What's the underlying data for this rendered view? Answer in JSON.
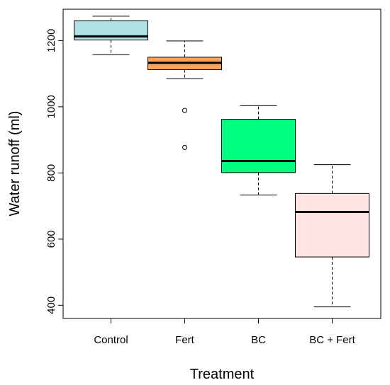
{
  "chart_data": {
    "type": "boxplot",
    "title": "",
    "xlabel": "Treatment",
    "ylabel": "Water runoff (ml)",
    "ylim": [
      360,
      1295
    ],
    "yticks": [
      400,
      600,
      800,
      1000,
      1200
    ],
    "grid": false,
    "legend": "none",
    "categories": [
      "Control",
      "Fert",
      "BC",
      "BC + Fert"
    ],
    "boxes": [
      {
        "category": "Control",
        "whisker_low": 1157,
        "q1": 1202,
        "median": 1213,
        "q3": 1260,
        "whisker_high": 1274,
        "outliers": [],
        "fill": "#b0e0e6"
      },
      {
        "category": "Fert",
        "whisker_low": 1085,
        "q1": 1112,
        "median": 1133,
        "q3": 1150,
        "whisker_high": 1199,
        "outliers": [
          989,
          877
        ],
        "fill": "#f4a460"
      },
      {
        "category": "BC",
        "whisker_low": 733,
        "q1": 801,
        "median": 836,
        "q3": 962,
        "whisker_high": 1003,
        "outliers": [],
        "fill": "#00ff7f"
      },
      {
        "category": "BC + Fert",
        "whisker_low": 395,
        "q1": 546,
        "median": 682,
        "q3": 738,
        "whisker_high": 825,
        "outliers": [],
        "fill": "#ffe4e1"
      }
    ]
  }
}
